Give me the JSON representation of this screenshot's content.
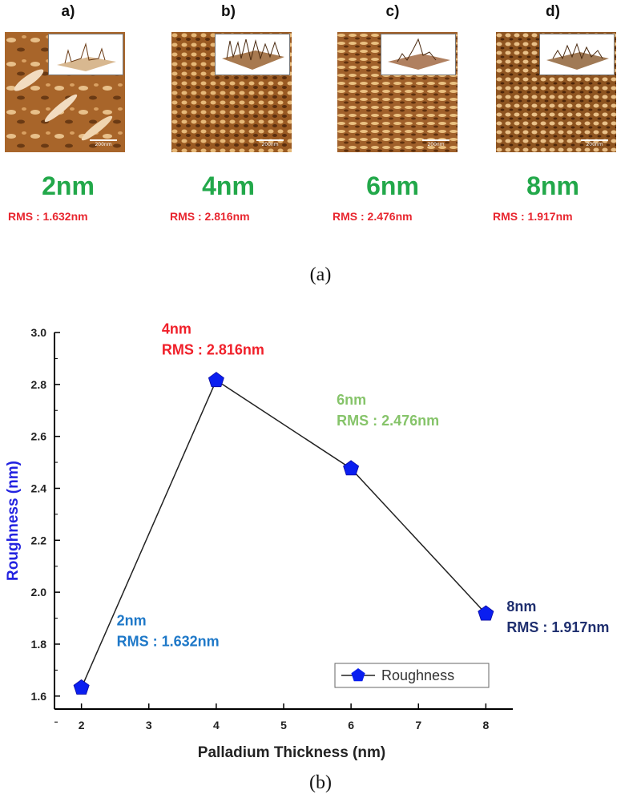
{
  "top_panels": [
    {
      "letter": "a)",
      "thickness": "2nm",
      "rms": "RMS : 1.632nm",
      "scale": "200nm"
    },
    {
      "letter": "b)",
      "thickness": "4nm",
      "rms": "RMS : 2.816nm",
      "scale": "200nm"
    },
    {
      "letter": "c)",
      "thickness": "6nm",
      "rms": "RMS : 2.476nm",
      "scale": "200nm"
    },
    {
      "letter": "d)",
      "thickness": "8nm",
      "rms": "RMS : 1.917nm",
      "scale": "200nm"
    }
  ],
  "captions": {
    "a": "(a)",
    "b": "(b)"
  },
  "colors": {
    "thickness_label": "#22a84a",
    "rms_label": "#e8262f",
    "axis_label": "#2323e0",
    "marker": "#0a1ef0",
    "annot_2nm": "#1e78c8",
    "annot_4nm": "#f0202a",
    "annot_6nm": "#86c46a",
    "annot_8nm": "#1f2f6f"
  },
  "chart_data": {
    "type": "line",
    "x": [
      2,
      4,
      6,
      8
    ],
    "series": [
      {
        "name": "Roughness",
        "values": [
          1.632,
          2.816,
          2.476,
          1.917
        ]
      }
    ],
    "xlabel": "Palladium Thickness (nm)",
    "ylabel": "Roughness (nm)",
    "xlim": [
      1.6,
      8.4
    ],
    "ylim": [
      1.55,
      3.0
    ],
    "xticks": [
      "2",
      "3",
      "4",
      "5",
      "6",
      "7",
      "8"
    ],
    "yticks": [
      "1.6",
      "1.8",
      "2.0",
      "2.2",
      "2.4",
      "2.6",
      "2.8",
      "3.0"
    ],
    "legend_position": "bottom-right",
    "grid": false,
    "annotations": [
      {
        "line1": "2nm",
        "line2": "RMS : 1.632nm"
      },
      {
        "line1": "4nm",
        "line2": "RMS : 2.816nm"
      },
      {
        "line1": "6nm",
        "line2": "RMS : 2.476nm"
      },
      {
        "line1": "8nm",
        "line2": "RMS : 1.917nm"
      }
    ]
  }
}
